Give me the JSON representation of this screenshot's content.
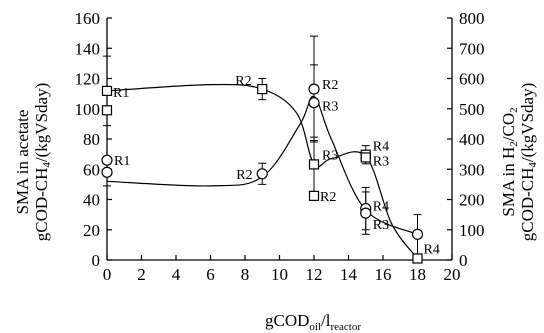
{
  "chart_data": {
    "type": "scatter",
    "title": "",
    "xlabel": {
      "main": "gCOD",
      "sub1": "oil",
      "mid": "/l",
      "sub2": "reactor"
    },
    "ylabel_left": {
      "line1": "SMA in acetate",
      "line2_pre": "gCOD-CH",
      "line2_sub": "4",
      "line2_post": "/(kgVSday)"
    },
    "ylabel_right": {
      "line1_pre": "SMA in H",
      "line1_sub1": "2",
      "line1_mid": "/CO",
      "line1_sub2": "2",
      "line2_pre": "gCOD-CH",
      "line2_sub": "4",
      "line2_post": "/(kgVSday)"
    },
    "xlim": [
      0,
      20
    ],
    "ylim_left": [
      0,
      160
    ],
    "ylim_right": [
      0,
      800
    ],
    "x_ticks": [
      "0",
      "2",
      "4",
      "6",
      "8",
      "10",
      "12",
      "14",
      "16",
      "18",
      "20"
    ],
    "y_ticks_left": [
      "0",
      "20",
      "40",
      "60",
      "80",
      "100",
      "120",
      "140",
      "160"
    ],
    "y_ticks_right": [
      "0",
      "100",
      "200",
      "300",
      "400",
      "500",
      "600",
      "700",
      "800"
    ],
    "grid": false,
    "series": [
      {
        "marker": "circle",
        "axis": "left",
        "points": [
          {
            "x": 0,
            "y": 66,
            "err": 0,
            "label": "R1"
          },
          {
            "x": 0,
            "y": 58,
            "err": 9,
            "label": ""
          },
          {
            "x": 9,
            "y": 57,
            "err": 7,
            "label": "R2"
          },
          {
            "x": 12,
            "y": 113,
            "err": 35,
            "label": "R2"
          },
          {
            "x": 12,
            "y": 104,
            "err": 25,
            "label": "R3"
          },
          {
            "x": 15,
            "y": 34,
            "err": 14,
            "label": "R4"
          },
          {
            "x": 15,
            "y": 31,
            "err": 14,
            "label": "R3"
          },
          {
            "x": 18,
            "y": 17,
            "err": 13,
            "label": "R4"
          }
        ],
        "curve_points": [
          {
            "x": 0,
            "y": 52
          },
          {
            "x": 6,
            "y": 49
          },
          {
            "x": 9,
            "y": 55
          },
          {
            "x": 11.2,
            "y": 90
          },
          {
            "x": 12,
            "y": 108
          },
          {
            "x": 13,
            "y": 80
          },
          {
            "x": 15,
            "y": 33
          },
          {
            "x": 18,
            "y": 17
          }
        ]
      },
      {
        "marker": "square",
        "axis": "right",
        "points": [
          {
            "x": 0,
            "y": 559,
            "err": 115,
            "label": "R1"
          },
          {
            "x": 0,
            "y": 495,
            "err": 0,
            "label": ""
          },
          {
            "x": 9,
            "y": 565,
            "err": 35,
            "label": "R2"
          },
          {
            "x": 12,
            "y": 316,
            "err": 90,
            "label": "R3"
          },
          {
            "x": 12,
            "y": 212,
            "err": 0,
            "label": "R2"
          },
          {
            "x": 15,
            "y": 348,
            "err": 30,
            "label": "R4"
          },
          {
            "x": 15,
            "y": 339,
            "err": 0,
            "label": "R3"
          },
          {
            "x": 18,
            "y": 5,
            "err": 0,
            "label": ""
          }
        ],
        "curve_points": [
          {
            "x": 0,
            "y": 559
          },
          {
            "x": 6,
            "y": 580
          },
          {
            "x": 9,
            "y": 565
          },
          {
            "x": 11,
            "y": 485
          },
          {
            "x": 12,
            "y": 316
          },
          {
            "x": 13,
            "y": 335
          },
          {
            "x": 15,
            "y": 343
          },
          {
            "x": 16.5,
            "y": 120
          },
          {
            "x": 18,
            "y": 5
          }
        ]
      }
    ]
  }
}
